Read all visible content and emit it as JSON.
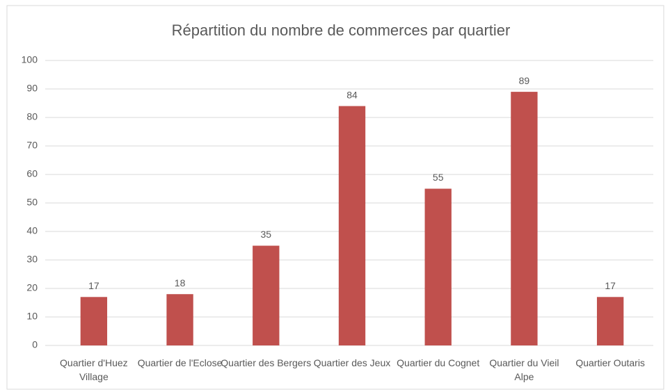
{
  "chart_data": {
    "type": "bar",
    "title": "Répartition du nombre de commerces par quartier",
    "categories": [
      "Quartier d'Huez Village",
      "Quartier de l'Eclose",
      "Quartier des Bergers",
      "Quartier des Jeux",
      "Quartier du Cognet",
      "Quartier du Vieil Alpe",
      "Quartier Outaris"
    ],
    "values": [
      17,
      18,
      35,
      84,
      55,
      89,
      17
    ],
    "color": "#c0504d",
    "ylim": [
      0,
      100
    ],
    "yticks": [
      0,
      10,
      20,
      30,
      40,
      50,
      60,
      70,
      80,
      90,
      100
    ],
    "grid": true
  }
}
